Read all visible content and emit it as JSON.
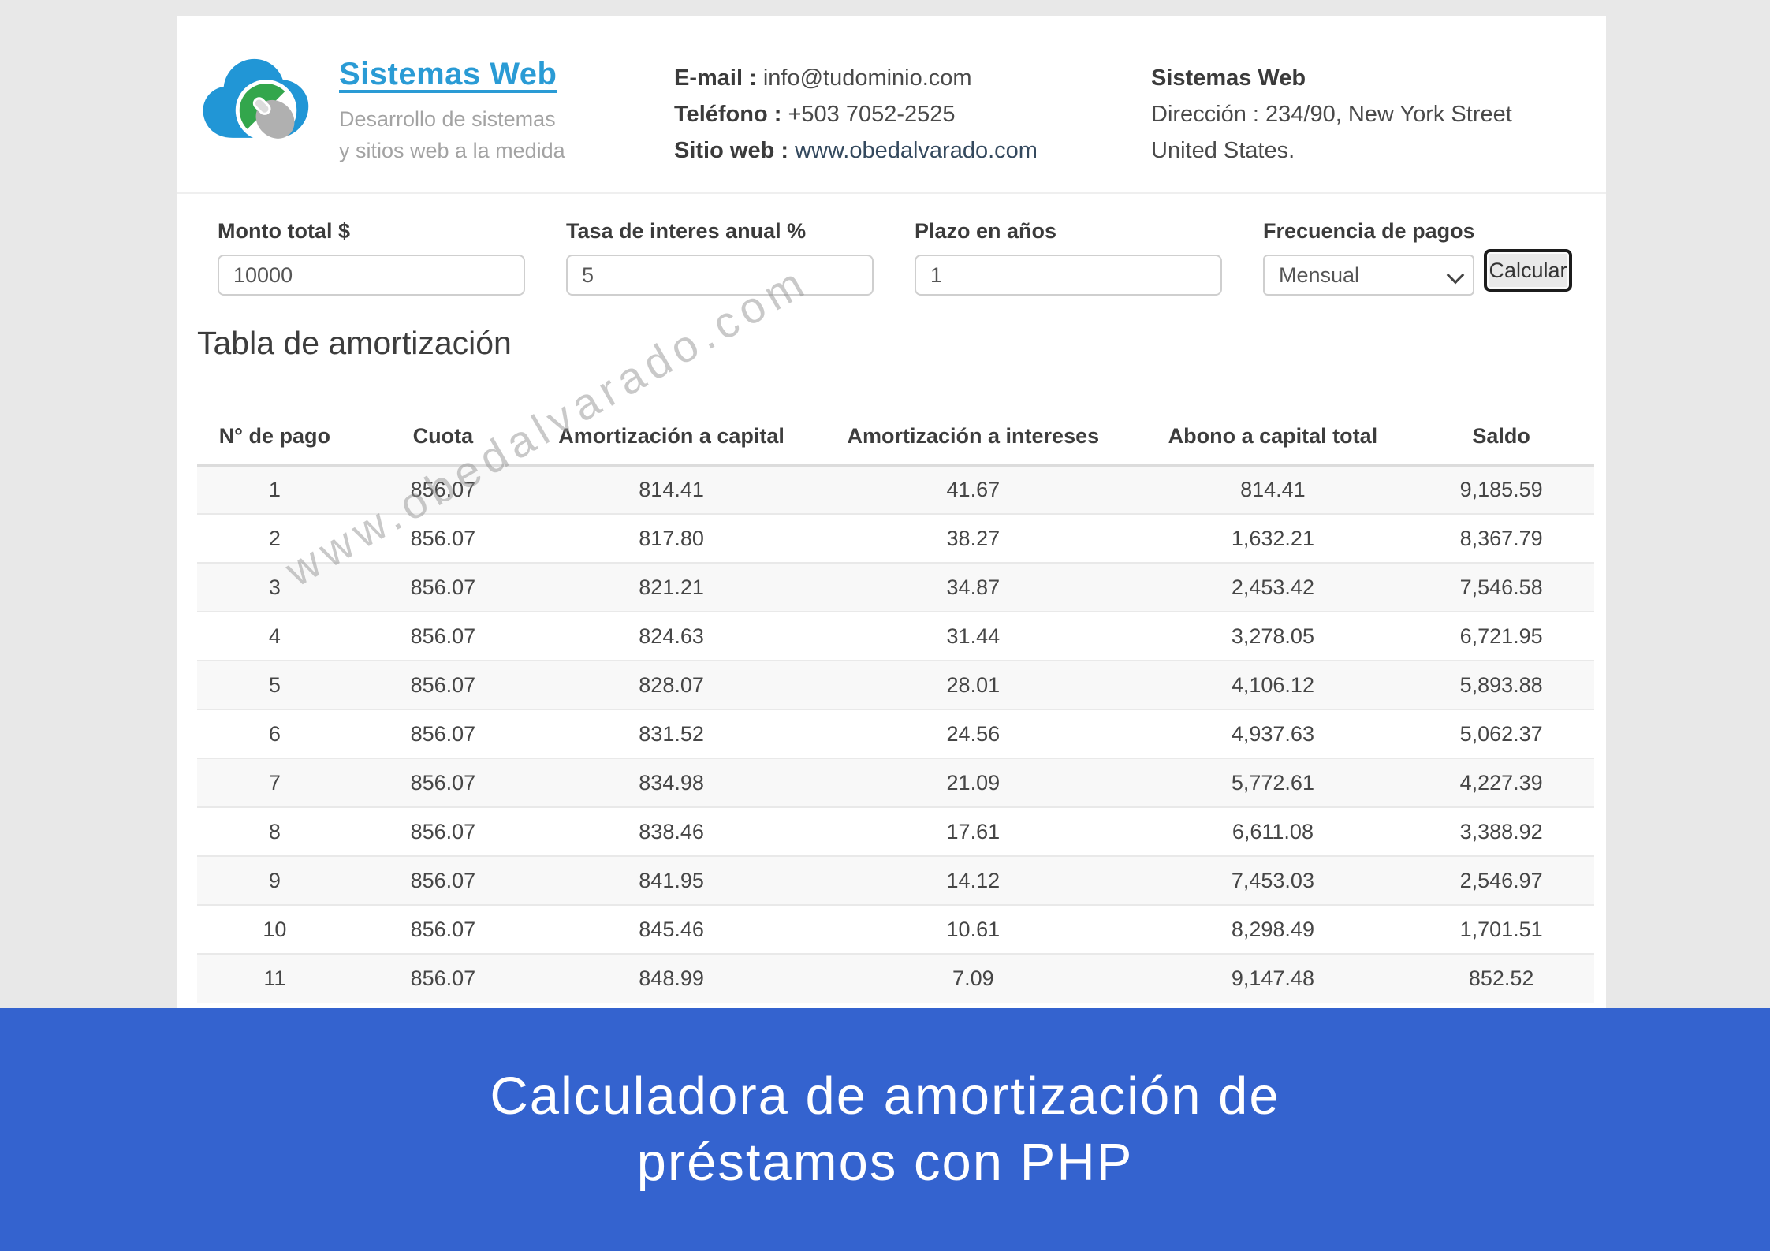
{
  "colors": {
    "page_background": "#e8e8e8",
    "banner_blue": "#3463cf",
    "logo_blue": "#2a9bd5",
    "logo_cloud_blue": "#2196d6",
    "logo_green": "#33a64c",
    "logo_gray": "#b0b0b0",
    "stripe_gray": "#f8f8f8"
  },
  "header": {
    "logo": {
      "title": "Sistemas Web",
      "subtitle_line1": "Desarrollo de sistemas",
      "subtitle_line2": "y sitios web a la medida"
    },
    "contact": {
      "email_label": "E-mail :",
      "email_value": "info@tudominio.com",
      "phone_label": "Teléfono :",
      "phone_value": "+503 7052-2525",
      "site_label": "Sitio web :",
      "site_value": "www.obedalvarado.com"
    },
    "company": {
      "name": "Sistemas Web",
      "address_line1": "Dirección : 234/90, New York Street",
      "address_line2": "United States."
    }
  },
  "form": {
    "fields": [
      {
        "label": "Monto total $",
        "value": "10000"
      },
      {
        "label": "Tasa de interes anual %",
        "value": "5"
      },
      {
        "label": "Plazo en años",
        "value": "1"
      },
      {
        "label": "Frecuencia de pagos",
        "value": "Mensual"
      }
    ],
    "button_label": "Calcular"
  },
  "table_section": {
    "title": "Tabla de amortización",
    "watermark": "www.obedalvarado.com",
    "columns": [
      "N° de pago",
      "Cuota",
      "Amortización a capital",
      "Amortización a intereses",
      "Abono a capital total",
      "Saldo"
    ],
    "rows": [
      [
        "1",
        "856.07",
        "814.41",
        "41.67",
        "814.41",
        "9,185.59"
      ],
      [
        "2",
        "856.07",
        "817.80",
        "38.27",
        "1,632.21",
        "8,367.79"
      ],
      [
        "3",
        "856.07",
        "821.21",
        "34.87",
        "2,453.42",
        "7,546.58"
      ],
      [
        "4",
        "856.07",
        "824.63",
        "31.44",
        "3,278.05",
        "6,721.95"
      ],
      [
        "5",
        "856.07",
        "828.07",
        "28.01",
        "4,106.12",
        "5,893.88"
      ],
      [
        "6",
        "856.07",
        "831.52",
        "24.56",
        "4,937.63",
        "5,062.37"
      ],
      [
        "7",
        "856.07",
        "834.98",
        "21.09",
        "5,772.61",
        "4,227.39"
      ],
      [
        "8",
        "856.07",
        "838.46",
        "17.61",
        "6,611.08",
        "3,388.92"
      ],
      [
        "9",
        "856.07",
        "841.95",
        "14.12",
        "7,453.03",
        "2,546.97"
      ],
      [
        "10",
        "856.07",
        "845.46",
        "10.61",
        "8,298.49",
        "1,701.51"
      ],
      [
        "11",
        "856.07",
        "848.99",
        "7.09",
        "9,147.48",
        "852.52"
      ]
    ]
  },
  "banner": {
    "line1": "Calculadora de amortización de",
    "line2": "préstamos con PHP"
  }
}
